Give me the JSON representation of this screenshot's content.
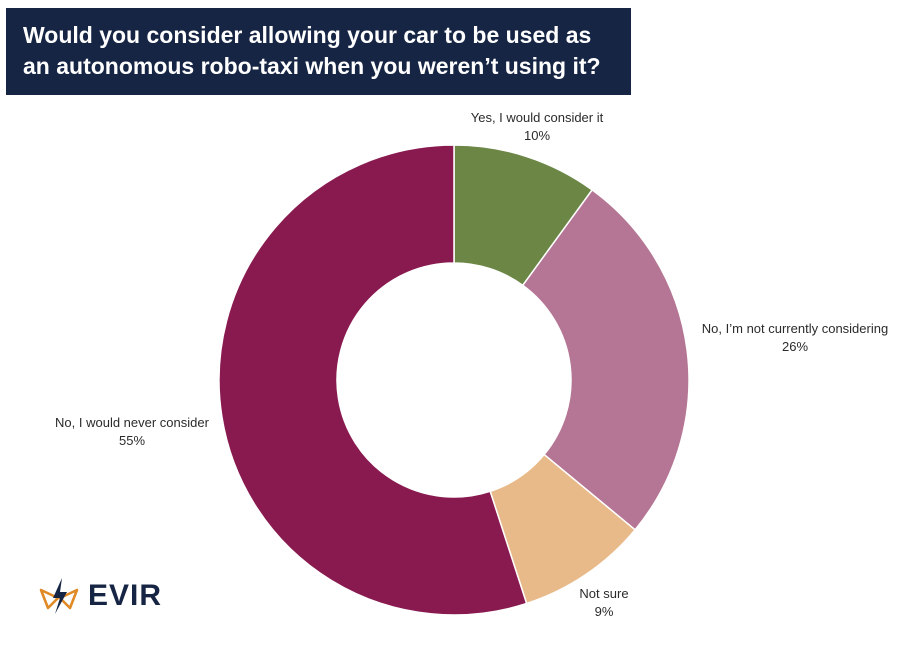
{
  "title": {
    "line1": "Would you consider allowing your car to be used as",
    "line2": "an autonomous robo-taxi when you weren’t using it?"
  },
  "chart_data": {
    "type": "pie",
    "donut": true,
    "unit": "%",
    "slices": [
      {
        "label": "Yes, I would consider it",
        "value": 10,
        "display": "10%",
        "color": "#6b8645"
      },
      {
        "label": "No, I’m not currently considering",
        "value": 26,
        "display": "26%",
        "color": "#b47694"
      },
      {
        "label": "Not sure",
        "value": 9,
        "display": "9%",
        "color": "#e8ba8a"
      },
      {
        "label": "No, I would never consider",
        "value": 55,
        "display": "55%",
        "color": "#881a50"
      }
    ]
  },
  "brand": {
    "name": "EVIR",
    "icon": "evir-logo-icon",
    "color": "#172545",
    "accent": "#e08a26"
  }
}
